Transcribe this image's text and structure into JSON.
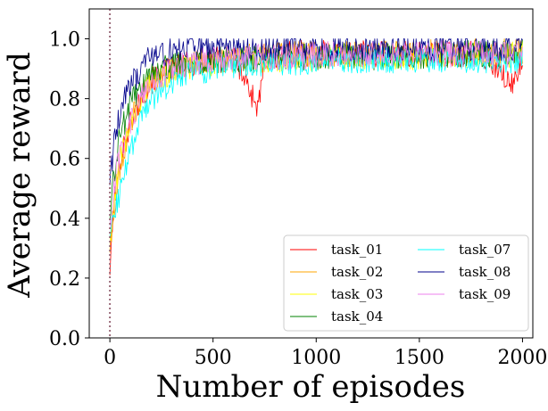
{
  "chart_data": {
    "type": "line",
    "title": "",
    "xlabel": "Number of episodes",
    "ylabel": "Average reward",
    "xlim": [
      -100,
      2050
    ],
    "ylim": [
      0.0,
      1.1
    ],
    "x_ticks": [
      0,
      500,
      1000,
      1500,
      2000
    ],
    "y_ticks": [
      0.0,
      0.2,
      0.4,
      0.6,
      0.8,
      1.0
    ],
    "x_tick_labels": [
      "0",
      "500",
      "1000",
      "1500",
      "2000"
    ],
    "y_tick_labels": [
      "0.0",
      "0.2",
      "0.4",
      "0.6",
      "0.8",
      "1.0"
    ],
    "grid": false,
    "legend_position": "lower-right",
    "legend_columns": 2,
    "vertical_reference_line": {
      "x": 0,
      "style": "dotted",
      "color": "#9a6b7a"
    },
    "series": [
      {
        "name": "task_01",
        "color": "#ff0000",
        "x": [
          0,
          20,
          50,
          100,
          150,
          200,
          300,
          400,
          500,
          600,
          720,
          750,
          900,
          1000,
          1200,
          1400,
          1600,
          1800,
          1950,
          2000
        ],
        "y": [
          0.23,
          0.45,
          0.6,
          0.72,
          0.8,
          0.86,
          0.9,
          0.92,
          0.93,
          0.94,
          0.77,
          0.94,
          0.95,
          0.95,
          0.95,
          0.95,
          0.95,
          0.95,
          0.84,
          0.95
        ]
      },
      {
        "name": "task_02",
        "color": "#ffa500",
        "x": [
          0,
          20,
          50,
          100,
          150,
          200,
          300,
          400,
          500,
          700,
          900,
          1100,
          1300,
          1500,
          1700,
          1900,
          2000
        ],
        "y": [
          0.3,
          0.42,
          0.58,
          0.72,
          0.8,
          0.86,
          0.9,
          0.92,
          0.93,
          0.94,
          0.95,
          0.95,
          0.95,
          0.95,
          0.96,
          0.96,
          0.96
        ]
      },
      {
        "name": "task_03",
        "color": "#ffff00",
        "x": [
          0,
          20,
          50,
          100,
          150,
          200,
          300,
          400,
          500,
          700,
          900,
          1100,
          1300,
          1500,
          1700,
          1900,
          2000
        ],
        "y": [
          0.35,
          0.45,
          0.6,
          0.73,
          0.8,
          0.85,
          0.89,
          0.91,
          0.92,
          0.93,
          0.93,
          0.94,
          0.94,
          0.94,
          0.94,
          0.95,
          0.95
        ]
      },
      {
        "name": "task_04",
        "color": "#008000",
        "x": [
          0,
          20,
          50,
          100,
          150,
          200,
          300,
          400,
          500,
          700,
          900,
          1100,
          1300,
          1500,
          1700,
          1900,
          2000
        ],
        "y": [
          0.4,
          0.55,
          0.68,
          0.78,
          0.84,
          0.88,
          0.91,
          0.92,
          0.93,
          0.93,
          0.94,
          0.94,
          0.94,
          0.94,
          0.95,
          0.95,
          0.96
        ]
      },
      {
        "name": "task_07",
        "color": "#00ffff",
        "x": [
          0,
          20,
          50,
          100,
          150,
          200,
          300,
          400,
          500,
          700,
          900,
          1100,
          1300,
          1500,
          1700,
          1900,
          2000
        ],
        "y": [
          0.33,
          0.4,
          0.5,
          0.62,
          0.72,
          0.8,
          0.86,
          0.89,
          0.9,
          0.92,
          0.92,
          0.93,
          0.93,
          0.93,
          0.93,
          0.93,
          0.93
        ]
      },
      {
        "name": "task_08",
        "color": "#00008b",
        "x": [
          0,
          20,
          50,
          100,
          150,
          200,
          300,
          400,
          500,
          700,
          900,
          1100,
          1300,
          1500,
          1700,
          1900,
          2000
        ],
        "y": [
          0.5,
          0.66,
          0.76,
          0.84,
          0.9,
          0.94,
          0.96,
          0.97,
          0.97,
          0.97,
          0.97,
          0.97,
          0.97,
          0.97,
          0.97,
          0.97,
          0.97
        ]
      },
      {
        "name": "task_09",
        "color": "#ee82ee",
        "x": [
          0,
          20,
          50,
          100,
          150,
          200,
          300,
          400,
          500,
          700,
          900,
          1100,
          1300,
          1500,
          1700,
          1900,
          2000
        ],
        "y": [
          0.38,
          0.5,
          0.62,
          0.72,
          0.8,
          0.86,
          0.9,
          0.92,
          0.93,
          0.94,
          0.94,
          0.95,
          0.95,
          0.95,
          0.95,
          0.95,
          0.95
        ]
      }
    ]
  }
}
